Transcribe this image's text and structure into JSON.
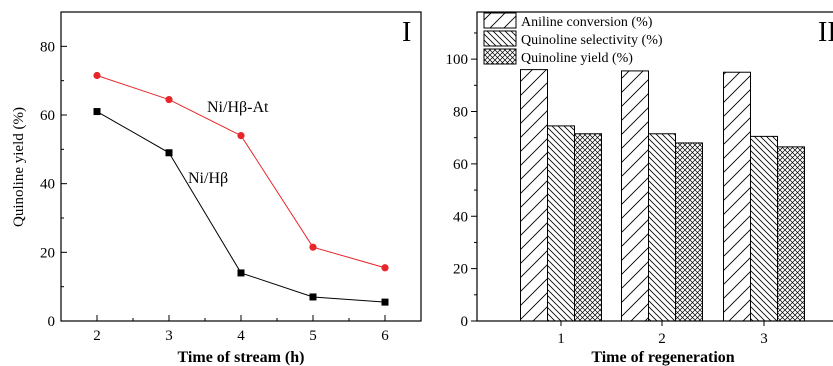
{
  "chart_data": [
    {
      "type": "line",
      "panel_label": "I",
      "xlabel": "Time of stream (h)",
      "ylabel": "Quinoline yield (%)",
      "xlim": [
        1.5,
        6.5
      ],
      "ylim": [
        0,
        90
      ],
      "xticks": [
        2,
        3,
        4,
        5,
        6
      ],
      "yticks": [
        0,
        20,
        40,
        60,
        80
      ],
      "x": [
        2,
        3,
        4,
        5,
        6
      ],
      "series": [
        {
          "name": "Ni/Hβ-At",
          "values": [
            71.5,
            64.5,
            54,
            21.5,
            15.5
          ],
          "color": "#e8262a",
          "marker": "circle"
        },
        {
          "name": "Ni/Hβ",
          "values": [
            61,
            49,
            14,
            7,
            5.5
          ],
          "color": "#000000",
          "marker": "square"
        }
      ],
      "grid": false,
      "legend": "inline labels"
    },
    {
      "type": "bar",
      "panel_label": "II",
      "xlabel": "Time of regeneration",
      "ylabel": "",
      "categories": [
        "1",
        "2",
        "3"
      ],
      "ylim": [
        0,
        118
      ],
      "yticks": [
        0,
        20,
        40,
        60,
        80,
        100
      ],
      "series": [
        {
          "name": "Aniline conversion (%)",
          "values": [
            96,
            95.5,
            95
          ],
          "pattern": "diagonal-up"
        },
        {
          "name": "Quinoline selectivity (%)",
          "values": [
            74.5,
            71.5,
            70.5
          ],
          "pattern": "diagonal-down"
        },
        {
          "name": "Quinoline yield (%)",
          "values": [
            71.5,
            68,
            66.5
          ],
          "pattern": "crosshatch"
        }
      ],
      "grid": false,
      "legend": "top-left"
    }
  ]
}
